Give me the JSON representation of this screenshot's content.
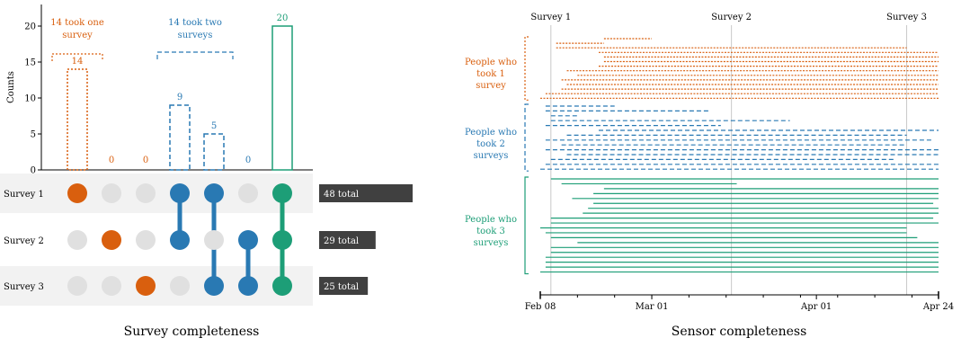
{
  "colors": {
    "orange": "#D95F0E",
    "blue": "#2979B3",
    "green": "#1D9E77",
    "dot_inactive": "#E0E0E0",
    "row_band": "#F2F2F2",
    "total_bar": "#404040",
    "gridline": "#C8C8C8",
    "axis": "#000000"
  },
  "left_panel": {
    "caption": "Survey completeness",
    "annotations": {
      "one_survey": [
        "14 took one",
        "survey"
      ],
      "two_surveys": [
        "14 took two",
        "surveys"
      ]
    }
  },
  "right_panel": {
    "caption": "Sensor completeness",
    "group_labels": {
      "one": [
        "People who",
        "took 1",
        "survey"
      ],
      "two": [
        "People who",
        "took 2",
        "surveys"
      ],
      "three": [
        "People who",
        "took 3",
        "surveys"
      ]
    }
  },
  "chart_data": [
    {
      "type": "bar",
      "title": "",
      "ylabel": "Counts",
      "ylim": [
        0,
        23
      ],
      "yticks": [
        0,
        5,
        10,
        15,
        20
      ],
      "grid": false,
      "categories": [
        "Survey 1 only",
        "Survey 2 only",
        "Survey 3 only",
        "Survey 1 + Survey 2",
        "Survey 1 + Survey 3",
        "Survey 2 + Survey 3",
        "All three surveys"
      ],
      "values": [
        14,
        0,
        0,
        9,
        5,
        0,
        20
      ],
      "value_labels": [
        "14",
        "0",
        "0",
        "9",
        "5",
        "0",
        "20"
      ],
      "bar_groups": [
        "one",
        "one",
        "one",
        "two",
        "two",
        "two",
        "three"
      ],
      "matrix": {
        "rows": [
          "Survey 1",
          "Survey 2",
          "Survey 3"
        ],
        "membership": [
          [
            1,
            0,
            0,
            1,
            1,
            0,
            1
          ],
          [
            0,
            1,
            0,
            1,
            0,
            1,
            1
          ],
          [
            0,
            0,
            1,
            0,
            1,
            1,
            1
          ]
        ]
      },
      "totals": [
        {
          "label": "48 total",
          "value": 48
        },
        {
          "label": "29 total",
          "value": 29
        },
        {
          "label": "25 total",
          "value": 25
        }
      ]
    },
    {
      "type": "line",
      "title": "",
      "xlabel": "",
      "xlim": [
        "2023-02-08",
        "2023-04-24"
      ],
      "xticks": [
        {
          "label": "Feb 08",
          "date": "2023-02-08"
        },
        {
          "label": "Mar 01",
          "date": "2023-03-01"
        },
        {
          "label": "Apr 01",
          "date": "2023-04-01"
        },
        {
          "label": "Apr 24",
          "date": "2023-04-24"
        }
      ],
      "reference_lines": [
        {
          "label": "Survey 1",
          "date": "2023-02-10"
        },
        {
          "label": "Survey 2",
          "date": "2023-03-16"
        },
        {
          "label": "Survey 3",
          "date": "2023-04-18"
        }
      ],
      "grid": false,
      "series": [
        {
          "group": "one",
          "intervals": [
            [
              "2023-02-20",
              "2023-03-01"
            ],
            [
              "2023-02-11",
              "2023-02-20"
            ],
            [
              "2023-02-11",
              "2023-04-18"
            ],
            [
              "2023-02-19",
              "2023-04-24"
            ],
            [
              "2023-02-20",
              "2023-04-24"
            ],
            [
              "2023-02-20",
              "2023-04-24"
            ],
            [
              "2023-02-19",
              "2023-04-24"
            ],
            [
              "2023-02-13",
              "2023-04-24"
            ],
            [
              "2023-02-15",
              "2023-04-24"
            ],
            [
              "2023-02-12",
              "2023-04-24"
            ],
            [
              "2023-02-13",
              "2023-04-24"
            ],
            [
              "2023-02-12",
              "2023-04-24"
            ],
            [
              "2023-02-09",
              "2023-04-24"
            ],
            [
              "2023-02-08",
              "2023-04-24"
            ]
          ]
        },
        {
          "group": "two",
          "intervals": [
            [
              "2023-02-09",
              "2023-02-22"
            ],
            [
              "2023-02-09",
              "2023-03-12"
            ],
            [
              "2023-02-10",
              "2023-02-15"
            ],
            [
              "2023-02-10",
              "2023-03-27"
            ],
            [
              "2023-02-09",
              "2023-03-14"
            ],
            [
              "2023-02-19",
              "2023-04-24"
            ],
            [
              "2023-02-13",
              "2023-04-18"
            ],
            [
              "2023-02-09",
              "2023-04-23"
            ],
            [
              "2023-02-12",
              "2023-04-18"
            ],
            [
              "2023-02-09",
              "2023-04-24"
            ],
            [
              "2023-02-13",
              "2023-04-24"
            ],
            [
              "2023-02-10",
              "2023-04-16"
            ],
            [
              "2023-02-09",
              "2023-04-24"
            ],
            [
              "2023-02-08",
              "2023-04-24"
            ]
          ]
        },
        {
          "group": "three",
          "intervals": [
            [
              "2023-02-10",
              "2023-04-24"
            ],
            [
              "2023-02-12",
              "2023-03-17"
            ],
            [
              "2023-02-20",
              "2023-04-24"
            ],
            [
              "2023-02-18",
              "2023-04-24"
            ],
            [
              "2023-02-14",
              "2023-04-24"
            ],
            [
              "2023-02-18",
              "2023-04-23"
            ],
            [
              "2023-02-17",
              "2023-04-24"
            ],
            [
              "2023-02-16",
              "2023-04-24"
            ],
            [
              "2023-02-10",
              "2023-04-23"
            ],
            [
              "2023-02-10",
              "2023-04-24"
            ],
            [
              "2023-02-08",
              "2023-04-18"
            ],
            [
              "2023-02-09",
              "2023-04-18"
            ],
            [
              "2023-02-10",
              "2023-04-20"
            ],
            [
              "2023-02-15",
              "2023-04-24"
            ],
            [
              "2023-02-10",
              "2023-04-24"
            ],
            [
              "2023-02-10",
              "2023-04-24"
            ],
            [
              "2023-02-09",
              "2023-04-24"
            ],
            [
              "2023-02-09",
              "2023-04-24"
            ],
            [
              "2023-02-09",
              "2023-04-24"
            ],
            [
              "2023-02-08",
              "2023-04-24"
            ]
          ]
        }
      ]
    }
  ]
}
